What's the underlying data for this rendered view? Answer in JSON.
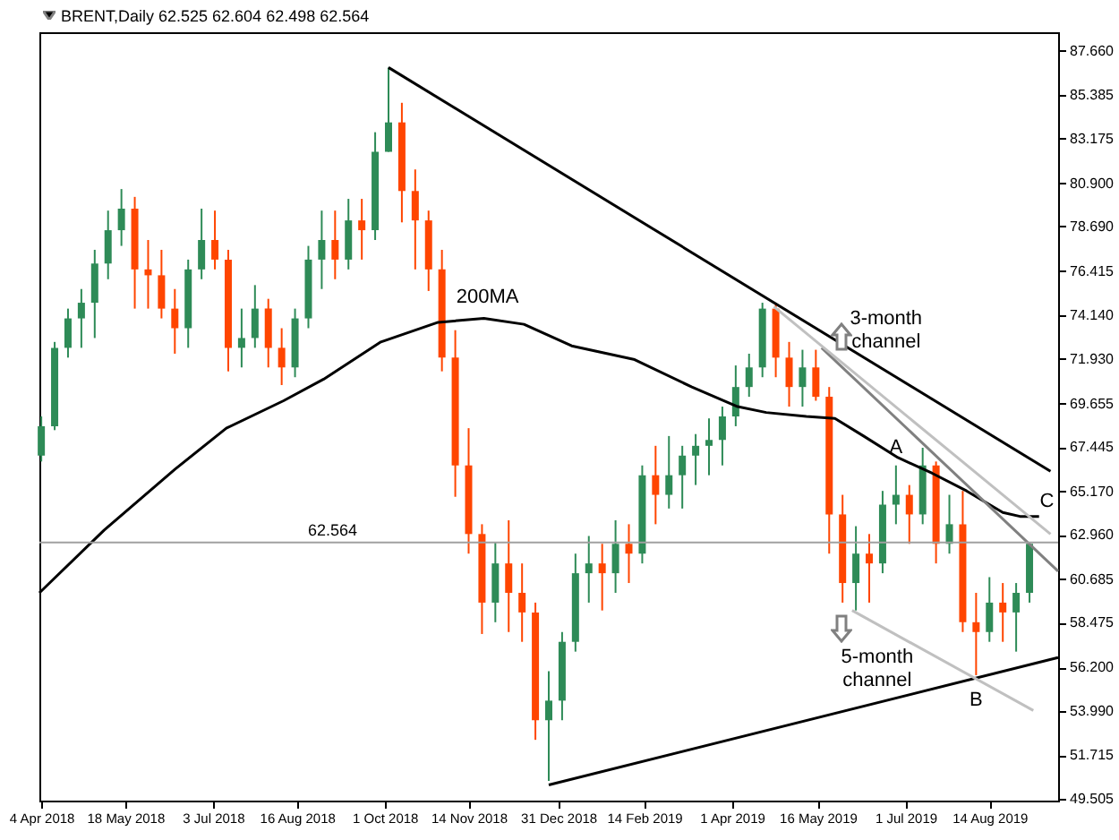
{
  "chart_data": {
    "type": "candlestick",
    "title": "BRENT,Daily 62.525 62.604 62.498 62.564",
    "x": [
      "2018-04-04",
      "2018-04-11",
      "2018-04-18",
      "2018-04-25",
      "2018-05-02",
      "2018-05-09",
      "2018-05-16",
      "2018-05-23",
      "2018-05-30",
      "2018-06-06",
      "2018-06-13",
      "2018-06-20",
      "2018-06-27",
      "2018-07-04",
      "2018-07-11",
      "2018-07-18",
      "2018-07-25",
      "2018-08-01",
      "2018-08-08",
      "2018-08-15",
      "2018-08-22",
      "2018-08-29",
      "2018-09-05",
      "2018-09-12",
      "2018-09-19",
      "2018-09-26",
      "2018-10-03",
      "2018-10-10",
      "2018-10-17",
      "2018-10-24",
      "2018-10-31",
      "2018-11-07",
      "2018-11-14",
      "2018-11-21",
      "2018-11-28",
      "2018-12-05",
      "2018-12-12",
      "2018-12-19",
      "2018-12-26",
      "2019-01-02",
      "2019-01-09",
      "2019-01-16",
      "2019-01-23",
      "2019-01-30",
      "2019-02-06",
      "2019-02-13",
      "2019-02-20",
      "2019-02-27",
      "2019-03-06",
      "2019-03-13",
      "2019-03-20",
      "2019-03-27",
      "2019-04-03",
      "2019-04-10",
      "2019-04-17",
      "2019-04-24",
      "2019-05-01",
      "2019-05-08",
      "2019-05-15",
      "2019-05-22",
      "2019-05-29",
      "2019-06-05",
      "2019-06-12",
      "2019-06-19",
      "2019-06-26",
      "2019-07-03",
      "2019-07-10",
      "2019-07-17",
      "2019-07-24",
      "2019-07-31",
      "2019-08-07",
      "2019-08-14",
      "2019-08-21",
      "2019-08-28",
      "2019-09-04"
    ],
    "ohlc": [
      [
        67.0,
        69.0,
        66.7,
        68.5
      ],
      [
        68.5,
        72.8,
        68.3,
        72.5
      ],
      [
        72.5,
        74.5,
        72.0,
        74.0
      ],
      [
        74.0,
        75.5,
        72.5,
        74.8
      ],
      [
        74.8,
        77.5,
        73.0,
        76.8
      ],
      [
        76.8,
        79.5,
        76.0,
        78.5
      ],
      [
        78.5,
        80.6,
        77.7,
        79.6
      ],
      [
        79.6,
        80.2,
        74.5,
        76.5
      ],
      [
        76.5,
        78.0,
        74.5,
        76.2
      ],
      [
        76.2,
        77.5,
        74.0,
        74.5
      ],
      [
        74.5,
        75.5,
        72.2,
        73.5
      ],
      [
        73.5,
        77.0,
        72.5,
        76.5
      ],
      [
        76.5,
        79.6,
        76.0,
        78.0
      ],
      [
        78.0,
        79.5,
        76.5,
        77.0
      ],
      [
        77.0,
        77.5,
        71.3,
        72.5
      ],
      [
        72.5,
        74.5,
        71.5,
        73.0
      ],
      [
        73.0,
        75.7,
        72.5,
        74.5
      ],
      [
        74.5,
        75.0,
        71.5,
        72.5
      ],
      [
        72.5,
        73.5,
        70.6,
        71.5
      ],
      [
        71.5,
        74.5,
        71.0,
        74.0
      ],
      [
        74.0,
        77.7,
        73.5,
        77.0
      ],
      [
        77.0,
        79.5,
        75.5,
        78.0
      ],
      [
        78.0,
        79.5,
        76.0,
        77.0
      ],
      [
        77.0,
        80.1,
        76.5,
        79.0
      ],
      [
        79.0,
        80.1,
        77.0,
        78.5
      ],
      [
        78.5,
        83.5,
        78.0,
        82.5
      ],
      [
        82.5,
        86.8,
        82.5,
        84.0
      ],
      [
        84.0,
        85.0,
        78.9,
        80.5
      ],
      [
        80.5,
        81.6,
        76.5,
        79.0
      ],
      [
        79.0,
        79.5,
        75.4,
        76.5
      ],
      [
        76.5,
        77.5,
        71.3,
        72.0
      ],
      [
        72.0,
        73.4,
        64.9,
        66.5
      ],
      [
        66.5,
        68.4,
        62.0,
        63.0
      ],
      [
        63.0,
        63.5,
        57.9,
        59.5
      ],
      [
        59.5,
        62.6,
        58.5,
        61.5
      ],
      [
        61.5,
        63.7,
        58.0,
        60.0
      ],
      [
        60.0,
        61.5,
        57.5,
        59.0
      ],
      [
        59.0,
        59.5,
        52.5,
        53.5
      ],
      [
        53.5,
        56.0,
        50.4,
        54.5
      ],
      [
        54.5,
        58.0,
        53.5,
        57.5
      ],
      [
        57.5,
        62.0,
        57.0,
        61.0
      ],
      [
        61.0,
        62.9,
        59.5,
        61.5
      ],
      [
        61.5,
        62.5,
        59.1,
        61.0
      ],
      [
        61.0,
        63.7,
        60.0,
        62.5
      ],
      [
        62.5,
        63.5,
        60.5,
        62.0
      ],
      [
        62.0,
        66.5,
        61.5,
        66.0
      ],
      [
        66.0,
        67.5,
        63.5,
        65.0
      ],
      [
        65.0,
        68.0,
        64.3,
        66.0
      ],
      [
        66.0,
        67.5,
        64.3,
        67.0
      ],
      [
        67.0,
        68.1,
        65.5,
        67.5
      ],
      [
        67.5,
        68.9,
        66.0,
        67.8
      ],
      [
        67.8,
        69.5,
        66.5,
        69.0
      ],
      [
        69.0,
        71.6,
        68.5,
        70.5
      ],
      [
        70.5,
        72.2,
        70.0,
        71.5
      ],
      [
        71.5,
        74.8,
        71.0,
        74.5
      ],
      [
        74.5,
        74.8,
        71.0,
        72.0
      ],
      [
        72.0,
        72.8,
        69.5,
        70.5
      ],
      [
        70.5,
        72.4,
        69.5,
        71.5
      ],
      [
        71.5,
        72.4,
        69.8,
        70.0
      ],
      [
        70.0,
        70.5,
        62.0,
        64.0
      ],
      [
        64.0,
        65.0,
        59.5,
        60.5
      ],
      [
        60.5,
        63.4,
        59.1,
        62.0
      ],
      [
        62.0,
        63.0,
        59.5,
        61.5
      ],
      [
        61.5,
        65.2,
        61.0,
        64.5
      ],
      [
        64.5,
        66.5,
        63.5,
        65.0
      ],
      [
        65.0,
        65.5,
        62.5,
        64.0
      ],
      [
        64.0,
        67.4,
        63.5,
        66.5
      ],
      [
        66.5,
        66.7,
        61.5,
        62.5
      ],
      [
        62.5,
        65.0,
        62.0,
        63.5
      ],
      [
        63.5,
        65.2,
        58.0,
        58.5
      ],
      [
        58.5,
        60.0,
        55.8,
        58.0
      ],
      [
        58.0,
        60.8,
        57.5,
        59.5
      ],
      [
        59.5,
        60.5,
        57.5,
        59.0
      ],
      [
        59.0,
        60.5,
        57.0,
        60.0
      ],
      [
        60.0,
        62.6,
        59.5,
        62.5
      ]
    ],
    "colors": [
      "#2e8b57",
      "#2e8b57",
      "#2e8b57",
      "#2e8b57",
      "#2e8b57",
      "#2e8b57",
      "#2e8b57",
      "#ff4500",
      "#ff4500",
      "#ff4500",
      "#ff4500",
      "#2e8b57",
      "#2e8b57",
      "#ff4500",
      "#ff4500",
      "#2e8b57",
      "#2e8b57",
      "#ff4500",
      "#ff4500",
      "#2e8b57",
      "#2e8b57",
      "#2e8b57",
      "#ff4500",
      "#2e8b57",
      "#ff4500",
      "#2e8b57",
      "#2e8b57",
      "#ff4500",
      "#ff4500",
      "#ff4500",
      "#ff4500",
      "#ff4500",
      "#ff4500",
      "#ff4500",
      "#2e8b57",
      "#ff4500",
      "#ff4500",
      "#ff4500",
      "#2e8b57",
      "#2e8b57",
      "#2e8b57",
      "#2e8b57",
      "#ff4500",
      "#2e8b57",
      "#ff4500",
      "#2e8b57",
      "#ff4500",
      "#2e8b57",
      "#2e8b57",
      "#2e8b57",
      "#2e8b57",
      "#2e8b57",
      "#2e8b57",
      "#2e8b57",
      "#2e8b57",
      "#ff4500",
      "#ff4500",
      "#2e8b57",
      "#ff4500",
      "#ff4500",
      "#ff4500",
      "#2e8b57",
      "#ff4500",
      "#2e8b57",
      "#2e8b57",
      "#ff4500",
      "#2e8b57",
      "#ff4500",
      "#2e8b57",
      "#ff4500",
      "#ff4500",
      "#2e8b57",
      "#ff4500",
      "#2e8b57",
      "#2e8b57"
    ],
    "series": [
      {
        "type": "line",
        "color": "#000000",
        "x": [
          "2018-04-03",
          "2018-05-07",
          "2018-06-13",
          "2018-07-10",
          "2018-08-09",
          "2018-08-30",
          "2018-09-29",
          "2018-10-29",
          "2018-11-22",
          "2018-12-13",
          "2019-01-07",
          "2019-02-09",
          "2019-03-11",
          "2019-04-04",
          "2019-04-19",
          "2019-05-10",
          "2019-05-25",
          "2019-06-09",
          "2019-06-27",
          "2019-07-15",
          "2019-08-02",
          "2019-08-21",
          "2019-08-30",
          "2019-09-09"
        ],
        "values": [
          60.0,
          63.2,
          66.3,
          68.4,
          69.8,
          70.9,
          72.8,
          73.8,
          74.0,
          73.7,
          72.6,
          71.9,
          70.5,
          69.5,
          69.2,
          69.0,
          68.9,
          68.0,
          66.9,
          66.1,
          65.2,
          64.1,
          63.9,
          63.9
        ]
      },
      {
        "type": "line",
        "color": "#000000",
        "x": [
          "2018-10-03",
          "2019-09-15"
        ],
        "values": [
          86.8,
          66.2
        ]
      },
      {
        "type": "line",
        "color": "#000000",
        "x": [
          "2018-12-26",
          "2019-09-19"
        ],
        "values": [
          50.2,
          56.7
        ]
      },
      {
        "type": "line",
        "color": "#808080",
        "x": [
          "2019-05-18",
          "2019-09-19"
        ],
        "values": [
          72.5,
          61.1
        ]
      },
      {
        "type": "line",
        "color": "#c0c0c0",
        "x": [
          "2019-04-23",
          "2019-09-15"
        ],
        "values": [
          74.6,
          63.0
        ]
      },
      {
        "type": "line",
        "color": "#c0c0c0",
        "x": [
          "2019-06-03",
          "2019-09-06"
        ],
        "values": [
          59.1,
          54.0
        ]
      }
    ],
    "xlim": [
      "2018-04-03",
      "2019-09-19"
    ],
    "xticks": [
      {
        "value": "2018-04-04",
        "label": "4 Apr 2018"
      },
      {
        "value": "2018-05-18",
        "label": "18 May 2018"
      },
      {
        "value": "2018-07-03",
        "label": "3 Jul 2018"
      },
      {
        "value": "2018-08-16",
        "label": "16 Aug 2018"
      },
      {
        "value": "2018-10-01",
        "label": "1 Oct 2018"
      },
      {
        "value": "2018-11-14",
        "label": "14 Nov 2018"
      },
      {
        "value": "2018-12-31",
        "label": "31 Dec 2018"
      },
      {
        "value": "2019-02-14",
        "label": "14 Feb 2019"
      },
      {
        "value": "2019-04-01",
        "label": "1 Apr 2019"
      },
      {
        "value": "2019-05-16",
        "label": "16 May 2019"
      },
      {
        "value": "2019-07-01",
        "label": "1 Jul 2019"
      },
      {
        "value": "2019-08-14",
        "label": "14 Aug 2019"
      }
    ],
    "ylim": [
      49.4,
      88.6
    ],
    "yticks": [
      {
        "value": 87.66,
        "label": "87.660"
      },
      {
        "value": 85.385,
        "label": "85.385"
      },
      {
        "value": 83.175,
        "label": "83.175"
      },
      {
        "value": 80.9,
        "label": "80.900"
      },
      {
        "value": 78.69,
        "label": "78.690"
      },
      {
        "value": 76.415,
        "label": "76.415"
      },
      {
        "value": 74.14,
        "label": "74.140"
      },
      {
        "value": 71.93,
        "label": "71.930"
      },
      {
        "value": 69.655,
        "label": "69.655"
      },
      {
        "value": 67.445,
        "label": "67.445"
      },
      {
        "value": 65.17,
        "label": "65.170"
      },
      {
        "value": 62.96,
        "label": "62.960"
      },
      {
        "value": 60.685,
        "label": "60.685"
      },
      {
        "value": 58.475,
        "label": "58.475"
      },
      {
        "value": 56.2,
        "label": "56.200"
      },
      {
        "value": 53.99,
        "label": "53.990"
      },
      {
        "value": 51.715,
        "label": "51.715"
      },
      {
        "value": 49.505,
        "label": "49.505"
      }
    ],
    "ref_lines": [
      {
        "axis": "y",
        "value": 62.564,
        "label": "62.564",
        "color": "#a0a0a0"
      }
    ],
    "annotations": [
      {
        "text": "200MA",
        "x": "2018-11-22",
        "y": 74.0
      },
      {
        "text": "3-month\nchannel",
        "x": "2019-05-18",
        "y": 72.5
      },
      {
        "text": "5-month\nchannel",
        "x": "2019-06-03",
        "y": 59.1
      },
      {
        "text": "A",
        "x": "2019-06-26",
        "y": 66.5
      },
      {
        "text": "B",
        "x": "2019-08-07",
        "y": 55.8
      },
      {
        "text": "C",
        "x": "2019-09-15",
        "y": 63.0
      }
    ]
  }
}
